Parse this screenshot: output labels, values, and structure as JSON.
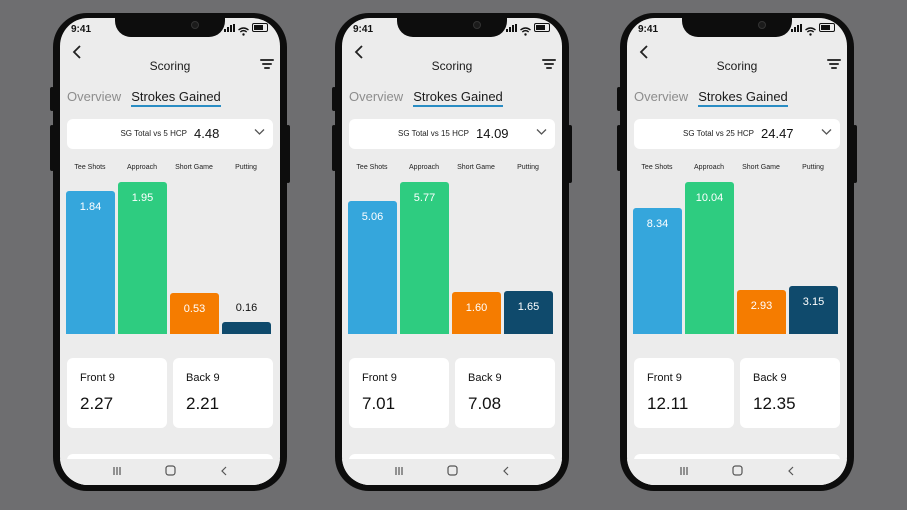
{
  "status_time": "9:41",
  "screen_title": "Scoring",
  "tabs": [
    "Overview",
    "Strokes Gained"
  ],
  "columns": [
    "Tee Shots",
    "Approach",
    "Short Game",
    "Putting"
  ],
  "card_labels": {
    "front": "Front 9",
    "back": "Back 9"
  },
  "icons": {
    "back": "chevron-left-icon",
    "filter": "filter-icon",
    "dropdown": "chevron-down-icon",
    "nav": [
      "recent-apps-icon",
      "home-icon",
      "back-icon"
    ]
  },
  "colors": {
    "tee": "#35a6dc",
    "approach": "#2ecc80",
    "short_game": "#f57c00",
    "putting": "#0f4a6c",
    "tab_underline": "#2a8dc4"
  },
  "phones": [
    {
      "selector_label": "SG Total vs 5 HCP",
      "selector_value": "4.48",
      "chart_data": {
        "type": "bar",
        "categories": [
          "Tee Shots",
          "Approach",
          "Short Game",
          "Putting"
        ],
        "values": [
          1.84,
          1.95,
          0.53,
          0.16
        ]
      },
      "bar_labels": [
        "1.84",
        "1.95",
        "0.53",
        "0.16"
      ],
      "front9": "2.27",
      "back9": "2.21"
    },
    {
      "selector_label": "SG Total vs 15 HCP",
      "selector_value": "14.09",
      "chart_data": {
        "type": "bar",
        "categories": [
          "Tee Shots",
          "Approach",
          "Short Game",
          "Putting"
        ],
        "values": [
          5.06,
          5.77,
          1.6,
          1.65
        ]
      },
      "bar_labels": [
        "5.06",
        "5.77",
        "1.60",
        "1.65"
      ],
      "front9": "7.01",
      "back9": "7.08"
    },
    {
      "selector_label": "SG Total vs 25 HCP",
      "selector_value": "24.47",
      "chart_data": {
        "type": "bar",
        "categories": [
          "Tee Shots",
          "Approach",
          "Short Game",
          "Putting"
        ],
        "values": [
          8.34,
          10.04,
          2.93,
          3.15
        ]
      },
      "bar_labels": [
        "8.34",
        "10.04",
        "2.93",
        "3.15"
      ],
      "front9": "12.11",
      "back9": "12.35"
    }
  ]
}
